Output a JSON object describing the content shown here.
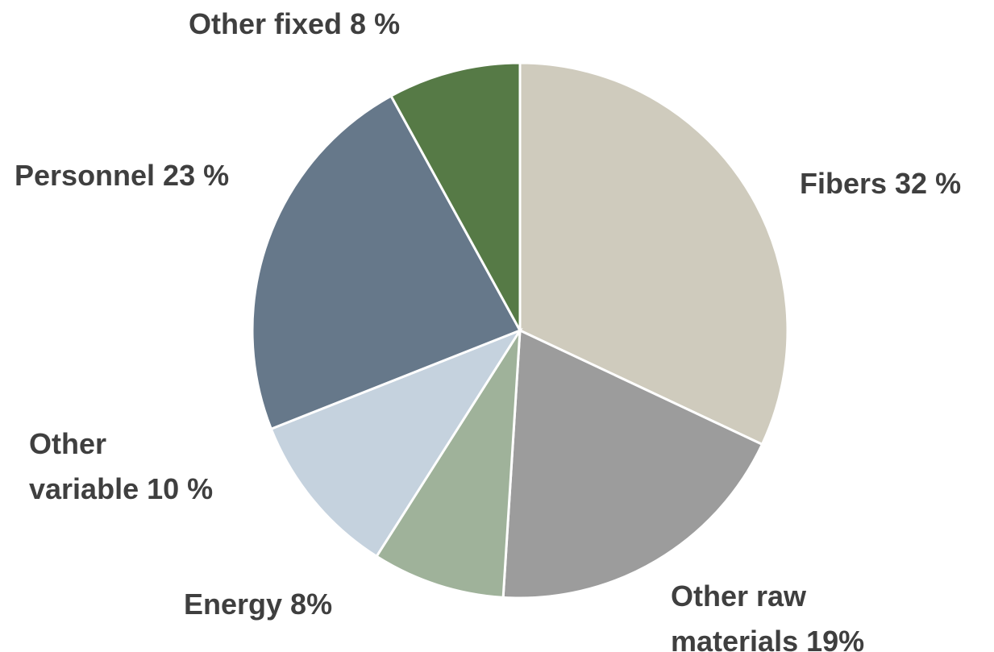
{
  "chart_data": {
    "type": "pie",
    "values": [
      32,
      19,
      8,
      10,
      23,
      8
    ],
    "value_labels": [
      "Fibers 32 %",
      "Other raw\nmaterials 19%",
      "Energy 8%",
      "Other\nvariable 10 %",
      "Personnel 23 %",
      "Other fixed 8 %"
    ],
    "colors": [
      "#cfcbbd",
      "#9c9c9c",
      "#9fb29a",
      "#c5d2de",
      "#66788a",
      "#567a46"
    ]
  }
}
